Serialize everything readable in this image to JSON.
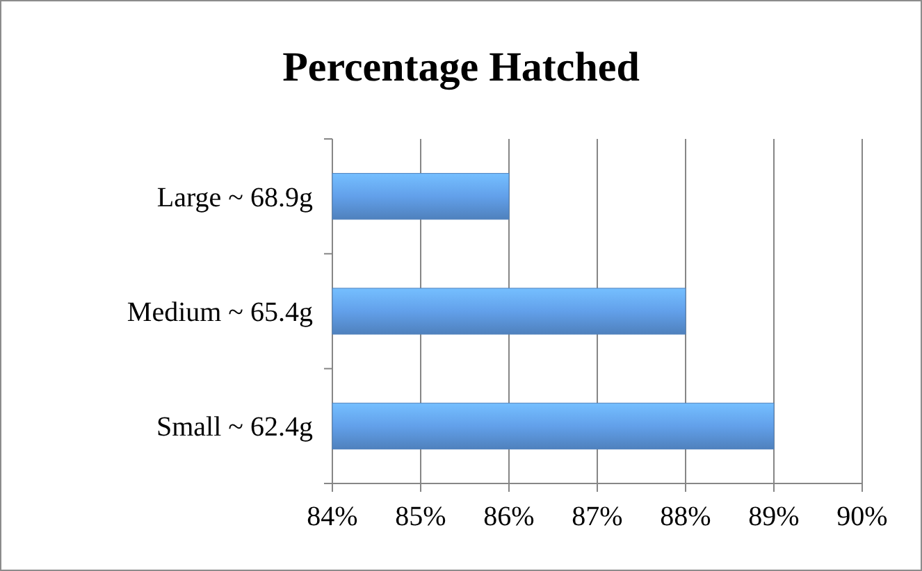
{
  "chart_data": {
    "type": "bar",
    "orientation": "horizontal",
    "title": "Percentage Hatched",
    "categories": [
      "Large ~ 68.9g",
      "Medium ~ 65.4g",
      "Small ~ 62.4g"
    ],
    "values": [
      86,
      88,
      89
    ],
    "color": "#4f81bd",
    "xlim": [
      84,
      90
    ],
    "xticks": [
      {
        "value": 84,
        "label": "84%"
      },
      {
        "value": 85,
        "label": "85%"
      },
      {
        "value": 86,
        "label": "86%"
      },
      {
        "value": 87,
        "label": "87%"
      },
      {
        "value": 88,
        "label": "88%"
      },
      {
        "value": 89,
        "label": "89%"
      },
      {
        "value": 90,
        "label": "90%"
      }
    ],
    "grid": "x"
  }
}
